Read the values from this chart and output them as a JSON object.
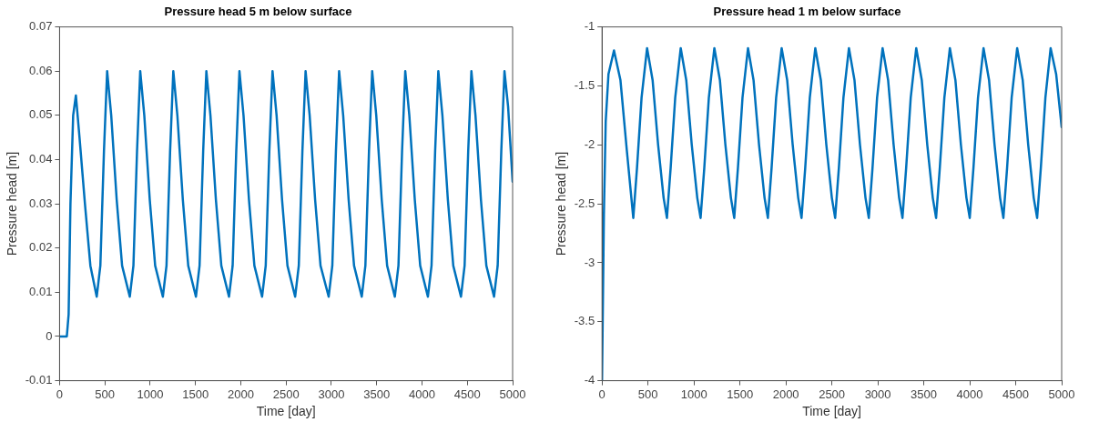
{
  "chart_data": [
    {
      "type": "line",
      "title": "Pressure head 5 m below surface",
      "xlabel": "Time [day]",
      "ylabel": "Pressure head [m]",
      "color": "#0072bd",
      "grid": false,
      "legend": false,
      "marker": "none",
      "line_style": "solid",
      "xlim": [
        0,
        5000
      ],
      "xticks": [
        0,
        500,
        1000,
        1500,
        2000,
        2500,
        3000,
        3500,
        4000,
        4500,
        5000
      ],
      "ylim": [
        -0.01,
        0.07
      ],
      "yticks": [
        -0.01,
        0,
        0.01,
        0.02,
        0.03,
        0.04,
        0.05,
        0.06,
        0.07
      ],
      "x": [
        0,
        80,
        100,
        120,
        150,
        180,
        220,
        280,
        340,
        410,
        450,
        490,
        525,
        570,
        630,
        690,
        775,
        815,
        855,
        890,
        935,
        995,
        1055,
        1140,
        1180,
        1220,
        1255,
        1300,
        1360,
        1420,
        1505,
        1545,
        1585,
        1620,
        1665,
        1725,
        1785,
        1870,
        1910,
        1950,
        1985,
        2030,
        2090,
        2150,
        2235,
        2275,
        2315,
        2350,
        2395,
        2455,
        2515,
        2600,
        2640,
        2680,
        2715,
        2760,
        2820,
        2880,
        2970,
        3010,
        3050,
        3085,
        3130,
        3190,
        3250,
        3335,
        3375,
        3415,
        3450,
        3495,
        3555,
        3615,
        3700,
        3740,
        3780,
        3815,
        3860,
        3920,
        3980,
        4065,
        4105,
        4145,
        4180,
        4225,
        4285,
        4345,
        4430,
        4470,
        4510,
        4545,
        4590,
        4650,
        4710,
        4795,
        4835,
        4875,
        4910,
        4950,
        5000
      ],
      "values": [
        0,
        0,
        0.005,
        0.03,
        0.05,
        0.0545,
        0.045,
        0.03,
        0.016,
        0.009,
        0.016,
        0.042,
        0.06,
        0.05,
        0.031,
        0.016,
        0.009,
        0.016,
        0.042,
        0.06,
        0.05,
        0.031,
        0.016,
        0.009,
        0.016,
        0.042,
        0.06,
        0.05,
        0.031,
        0.016,
        0.009,
        0.016,
        0.042,
        0.06,
        0.05,
        0.031,
        0.016,
        0.009,
        0.016,
        0.042,
        0.06,
        0.05,
        0.031,
        0.016,
        0.009,
        0.016,
        0.042,
        0.06,
        0.05,
        0.031,
        0.016,
        0.009,
        0.016,
        0.042,
        0.06,
        0.05,
        0.031,
        0.016,
        0.009,
        0.016,
        0.042,
        0.06,
        0.05,
        0.031,
        0.016,
        0.009,
        0.016,
        0.042,
        0.06,
        0.05,
        0.031,
        0.016,
        0.009,
        0.016,
        0.042,
        0.06,
        0.05,
        0.031,
        0.016,
        0.009,
        0.016,
        0.042,
        0.06,
        0.05,
        0.031,
        0.016,
        0.009,
        0.016,
        0.042,
        0.06,
        0.05,
        0.031,
        0.016,
        0.009,
        0.016,
        0.042,
        0.06,
        0.052,
        0.035
      ]
    },
    {
      "type": "line",
      "title": "Pressure head 1 m below surface",
      "xlabel": "Time [day]",
      "ylabel": "Pressure head [m]",
      "color": "#0072bd",
      "grid": false,
      "legend": false,
      "marker": "none",
      "line_style": "solid",
      "xlim": [
        0,
        5000
      ],
      "xticks": [
        0,
        500,
        1000,
        1500,
        2000,
        2500,
        3000,
        3500,
        4000,
        4500,
        5000
      ],
      "ylim": [
        -4,
        -1
      ],
      "yticks": [
        -4,
        -3.5,
        -3,
        -2.5,
        -2,
        -1.5,
        -1
      ],
      "x": [
        0,
        10,
        20,
        40,
        70,
        130,
        200,
        270,
        340,
        380,
        430,
        490,
        550,
        610,
        670,
        706,
        746,
        796,
        856,
        916,
        976,
        1036,
        1072,
        1112,
        1162,
        1222,
        1282,
        1342,
        1402,
        1438,
        1478,
        1528,
        1588,
        1648,
        1708,
        1768,
        1804,
        1844,
        1894,
        1954,
        2014,
        2074,
        2134,
        2170,
        2210,
        2260,
        2320,
        2380,
        2440,
        2500,
        2536,
        2576,
        2626,
        2686,
        2746,
        2806,
        2866,
        2902,
        2942,
        2992,
        3052,
        3112,
        3172,
        3232,
        3268,
        3308,
        3358,
        3418,
        3478,
        3538,
        3598,
        3634,
        3674,
        3724,
        3784,
        3844,
        3904,
        3964,
        4000,
        4040,
        4090,
        4150,
        4210,
        4270,
        4330,
        4366,
        4406,
        4456,
        4516,
        4576,
        4636,
        4696,
        4733,
        4773,
        4823,
        4880,
        4940,
        5000
      ],
      "values": [
        -4,
        -3.3,
        -2.6,
        -1.8,
        -1.4,
        -1.2,
        -1.45,
        -2.05,
        -2.62,
        -2.2,
        -1.6,
        -1.18,
        -1.45,
        -2,
        -2.45,
        -2.62,
        -2.2,
        -1.6,
        -1.18,
        -1.45,
        -2,
        -2.45,
        -2.62,
        -2.2,
        -1.6,
        -1.18,
        -1.45,
        -2,
        -2.45,
        -2.62,
        -2.2,
        -1.6,
        -1.18,
        -1.45,
        -2,
        -2.45,
        -2.62,
        -2.2,
        -1.6,
        -1.18,
        -1.45,
        -2,
        -2.45,
        -2.62,
        -2.2,
        -1.6,
        -1.18,
        -1.45,
        -2,
        -2.45,
        -2.62,
        -2.2,
        -1.6,
        -1.18,
        -1.45,
        -2,
        -2.45,
        -2.62,
        -2.2,
        -1.6,
        -1.18,
        -1.45,
        -2,
        -2.45,
        -2.62,
        -2.2,
        -1.6,
        -1.18,
        -1.45,
        -2,
        -2.45,
        -2.62,
        -2.2,
        -1.6,
        -1.18,
        -1.45,
        -2,
        -2.45,
        -2.62,
        -2.2,
        -1.6,
        -1.18,
        -1.45,
        -2,
        -2.45,
        -2.62,
        -2.2,
        -1.6,
        -1.18,
        -1.45,
        -2,
        -2.45,
        -2.62,
        -2.2,
        -1.6,
        -1.18,
        -1.4,
        -1.85
      ]
    }
  ]
}
